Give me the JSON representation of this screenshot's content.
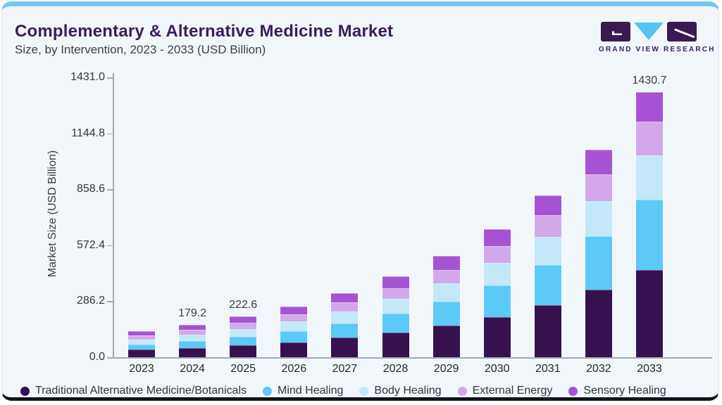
{
  "logo": {
    "text": "GRAND VIEW RESEARCH"
  },
  "chart_data": {
    "type": "bar",
    "stacked": true,
    "title": "Complementary & Alternative Medicine Market",
    "subtitle": "Size, by Intervention, 2023 - 2033 (USD Billion)",
    "ylabel": "Market Size (USD Billion)",
    "xlabel": "",
    "ylim": [
      0,
      1431
    ],
    "grid": false,
    "legend_position": "bottom",
    "y_ticks": [
      {
        "label": "0.0",
        "value": 0
      },
      {
        "label": "286.2",
        "value": 286.2
      },
      {
        "label": "572.4",
        "value": 572.4
      },
      {
        "label": "858.6",
        "value": 858.6
      },
      {
        "label": "1144.8",
        "value": 1144.8
      },
      {
        "label": "1431.0",
        "value": 1431.0
      }
    ],
    "categories": [
      "2023",
      "2024",
      "2025",
      "2026",
      "2027",
      "2028",
      "2029",
      "2030",
      "2031",
      "2032",
      "2033"
    ],
    "series": [
      {
        "name": "Traditional Alternative Medicine/Botanicals",
        "color": "#351150",
        "values": [
          41.1,
          51.7,
          65.3,
          82.4,
          105.4,
          133.9,
          170.4,
          218.2,
          279.5,
          363.1,
          470.1
        ]
      },
      {
        "name": "Mind Healing",
        "color": "#5cc9f6",
        "values": [
          29.0,
          37.2,
          47.4,
          60.8,
          78.8,
          101.4,
          130.7,
          169.4,
          219.4,
          288.3,
          378.2
        ]
      },
      {
        "name": "Body Healing",
        "color": "#c2e8f9",
        "values": [
          28.6,
          34.9,
          42.7,
          52.3,
          64.9,
          79.9,
          98.6,
          122.4,
          152.0,
          191.4,
          239.8
        ]
      },
      {
        "name": "External Energy",
        "color": "#d2a8eb",
        "values": [
          20.9,
          25.6,
          31.5,
          38.7,
          48.1,
          59.5,
          73.8,
          92.0,
          114.7,
          145.1,
          182.7
        ]
      },
      {
        "name": "Sensory Healing",
        "color": "#a553d3",
        "values": [
          24.9,
          29.8,
          35.7,
          42.8,
          51.8,
          62.2,
          74.6,
          90.0,
          108.4,
          132.1,
          159.9
        ]
      }
    ],
    "totals": [
      144.5,
      179.2,
      222.6,
      277.0,
      349.0,
      436.9,
      548.1,
      692.0,
      874.0,
      1120.0,
      1430.7
    ],
    "bar_labels": [
      "",
      "179.2",
      "222.6",
      "",
      "",
      "",
      "",
      "",
      "",
      "",
      "1430.7"
    ]
  },
  "colors": {
    "card_background": "#f0f6fa",
    "top_border": "#74c8ef",
    "bottom_border": "#14111d",
    "title": "#3c1b5e",
    "axis": "#a3a9af",
    "logo_purple": "#3a1a52",
    "logo_blue": "#56c3ee"
  }
}
